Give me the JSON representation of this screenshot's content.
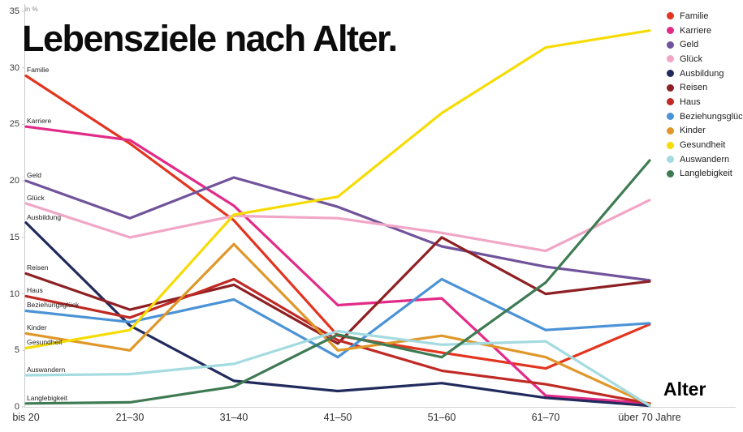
{
  "title": "Lebensziele nach Alter.",
  "y_axis": {
    "unit": "in %",
    "ticks": [
      0,
      5,
      10,
      15,
      20,
      25,
      30,
      35
    ]
  },
  "x_axis": {
    "title": "Alter"
  },
  "chart_data": {
    "type": "line",
    "title": "Lebensziele nach Alter.",
    "xlabel": "Alter",
    "ylabel": "in %",
    "ylim": [
      0,
      35
    ],
    "grid": false,
    "legend_position": "top-right",
    "x_categories": [
      "bis 20",
      "21–30",
      "31–40",
      "41–50",
      "51–60",
      "61–70",
      "über 70 Jahre"
    ],
    "series": [
      {
        "name": "Familie",
        "color": "#e23520",
        "values": [
          29.3,
          23.3,
          16.5,
          6.3,
          4.8,
          3.4,
          7.3
        ]
      },
      {
        "name": "Karriere",
        "color": "#e22b88",
        "values": [
          24.8,
          23.6,
          17.8,
          9.0,
          9.6,
          1.0,
          0.3
        ]
      },
      {
        "name": "Geld",
        "color": "#71539c",
        "values": [
          20.0,
          16.7,
          20.3,
          17.7,
          14.2,
          12.4,
          11.2
        ]
      },
      {
        "name": "Glück",
        "color": "#f1a6c6",
        "values": [
          18.0,
          15.0,
          16.9,
          16.7,
          15.4,
          13.8,
          18.3
        ]
      },
      {
        "name": "Ausbildung",
        "color": "#202a5c",
        "values": [
          16.3,
          7.2,
          2.3,
          1.4,
          2.1,
          0.8,
          0.1
        ]
      },
      {
        "name": "Reisen",
        "color": "#8e2023",
        "values": [
          11.8,
          8.6,
          10.8,
          5.6,
          15.0,
          10.0,
          11.1
        ]
      },
      {
        "name": "Haus",
        "color": "#bf2a25",
        "values": [
          9.8,
          7.9,
          11.3,
          5.9,
          3.2,
          2.0,
          0.3
        ]
      },
      {
        "name": "Beziehungsglück",
        "color": "#4b93d6",
        "values": [
          8.5,
          7.5,
          9.5,
          4.4,
          11.3,
          6.8,
          7.4
        ]
      },
      {
        "name": "Kinder",
        "color": "#df9729",
        "values": [
          6.5,
          5.0,
          14.4,
          5.0,
          6.3,
          4.4,
          0.2
        ]
      },
      {
        "name": "Gesundheit",
        "color": "#f6dc05",
        "values": [
          5.2,
          6.8,
          17.0,
          18.6,
          26.0,
          31.8,
          33.3
        ]
      },
      {
        "name": "Auswandern",
        "color": "#a3dbe0",
        "values": [
          2.8,
          2.9,
          3.8,
          6.7,
          5.5,
          5.8,
          0.1
        ]
      },
      {
        "name": "Langlebigkeit",
        "color": "#3e7b53",
        "values": [
          0.3,
          0.4,
          1.8,
          6.4,
          4.4,
          11.0,
          21.8
        ]
      }
    ]
  }
}
